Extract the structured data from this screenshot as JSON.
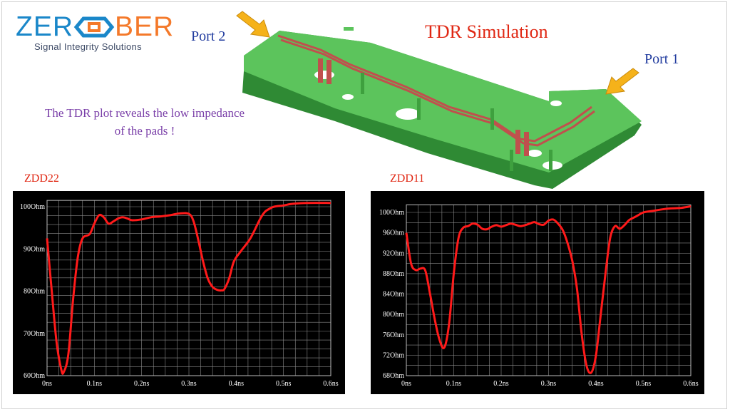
{
  "logo": {
    "brand_left": "ZER",
    "brand_right": "BER",
    "tagline": "Signal Integrity Solutions",
    "colors": {
      "blue": "#1a87c9",
      "orange": "#f4792a"
    }
  },
  "title": "TDR Simulation",
  "port2_label": "Port 2",
  "port1_label": "Port 1",
  "note_line1": "The TDR plot reveals the low impedance",
  "note_line2": "of the pads !",
  "colors": {
    "title": "#e02814",
    "port": "#1f3a9e",
    "note": "#7a3fa8",
    "board": "#4caf50",
    "trace": "#c0504d",
    "curve": "#ff1a1a",
    "arrow": "#f5b21a"
  },
  "chart_data": [
    {
      "type": "line",
      "label": "ZDD22",
      "xlabel": "",
      "ylabel": "",
      "x_ticks": [
        "0ns",
        "0.1ns",
        "0.2ns",
        "0.3ns",
        "0.4ns",
        "0.5ns",
        "0.6ns"
      ],
      "y_ticks": [
        "60Ohm",
        "70Ohm",
        "80Ohm",
        "90Ohm",
        "100Ohm"
      ],
      "xlim": [
        0,
        0.6
      ],
      "ylim": [
        60,
        101.5
      ],
      "grid": true,
      "series": [
        {
          "x": [
            0.0,
            0.01,
            0.02,
            0.03,
            0.035,
            0.045,
            0.055,
            0.065,
            0.075,
            0.09,
            0.1,
            0.11,
            0.12,
            0.13,
            0.14,
            0.15,
            0.16,
            0.17,
            0.18,
            0.2,
            0.22,
            0.24,
            0.26,
            0.28,
            0.3,
            0.31,
            0.32,
            0.33,
            0.34,
            0.35,
            0.36,
            0.37,
            0.375,
            0.385,
            0.395,
            0.41,
            0.43,
            0.45,
            0.46,
            0.47,
            0.48,
            0.5,
            0.52,
            0.55,
            0.6
          ],
          "y": [
            92.5,
            80,
            68,
            61.5,
            60.8,
            65,
            78,
            88,
            92.5,
            93.5,
            96,
            98,
            97.5,
            96,
            96.5,
            97.2,
            97.5,
            97.2,
            96.8,
            97,
            97.5,
            97.7,
            98,
            98.4,
            98.3,
            96.5,
            92,
            87,
            83,
            81,
            80.3,
            80.2,
            80.5,
            83,
            87,
            89.5,
            92.5,
            97,
            98.7,
            99.5,
            100,
            100.3,
            100.7,
            100.9,
            100.9
          ]
        }
      ]
    },
    {
      "type": "line",
      "label": "ZDD11",
      "xlabel": "",
      "ylabel": "",
      "x_ticks": [
        "0ns",
        "0.1ns",
        "0.2ns",
        "0.3ns",
        "0.4ns",
        "0.5ns",
        "0.6ns"
      ],
      "y_ticks": [
        "68Ohm",
        "72Ohm",
        "76Ohm",
        "80Ohm",
        "84Ohm",
        "88Ohm",
        "92Ohm",
        "96Ohm",
        "100Ohm"
      ],
      "xlim": [
        0,
        0.6
      ],
      "ylim": [
        68,
        101.5
      ],
      "grid": true,
      "series": [
        {
          "x": [
            0.0,
            0.01,
            0.02,
            0.03,
            0.04,
            0.05,
            0.06,
            0.07,
            0.08,
            0.09,
            0.1,
            0.11,
            0.12,
            0.13,
            0.14,
            0.15,
            0.16,
            0.17,
            0.18,
            0.19,
            0.2,
            0.21,
            0.22,
            0.23,
            0.24,
            0.25,
            0.26,
            0.27,
            0.28,
            0.29,
            0.3,
            0.31,
            0.32,
            0.33,
            0.34,
            0.35,
            0.36,
            0.37,
            0.38,
            0.39,
            0.4,
            0.41,
            0.42,
            0.43,
            0.44,
            0.45,
            0.46,
            0.47,
            0.48,
            0.49,
            0.5,
            0.52,
            0.54,
            0.56,
            0.58,
            0.6
          ],
          "y": [
            96,
            90,
            88.7,
            89,
            88.6,
            84,
            79,
            75,
            73.5,
            78,
            88,
            95,
            97,
            97.3,
            97.8,
            97.6,
            96.8,
            96.7,
            97.2,
            97.5,
            97.2,
            97.5,
            97.8,
            97.6,
            97.3,
            97.5,
            97.8,
            98.1,
            97.7,
            97.6,
            98.4,
            98.6,
            97.8,
            96.5,
            94,
            90.5,
            85,
            76,
            70,
            68.6,
            72,
            80,
            88,
            95,
            97.3,
            96.8,
            97.5,
            98.5,
            99,
            99.5,
            100,
            100.3,
            100.6,
            100.8,
            100.9,
            101.2
          ]
        }
      ]
    }
  ]
}
